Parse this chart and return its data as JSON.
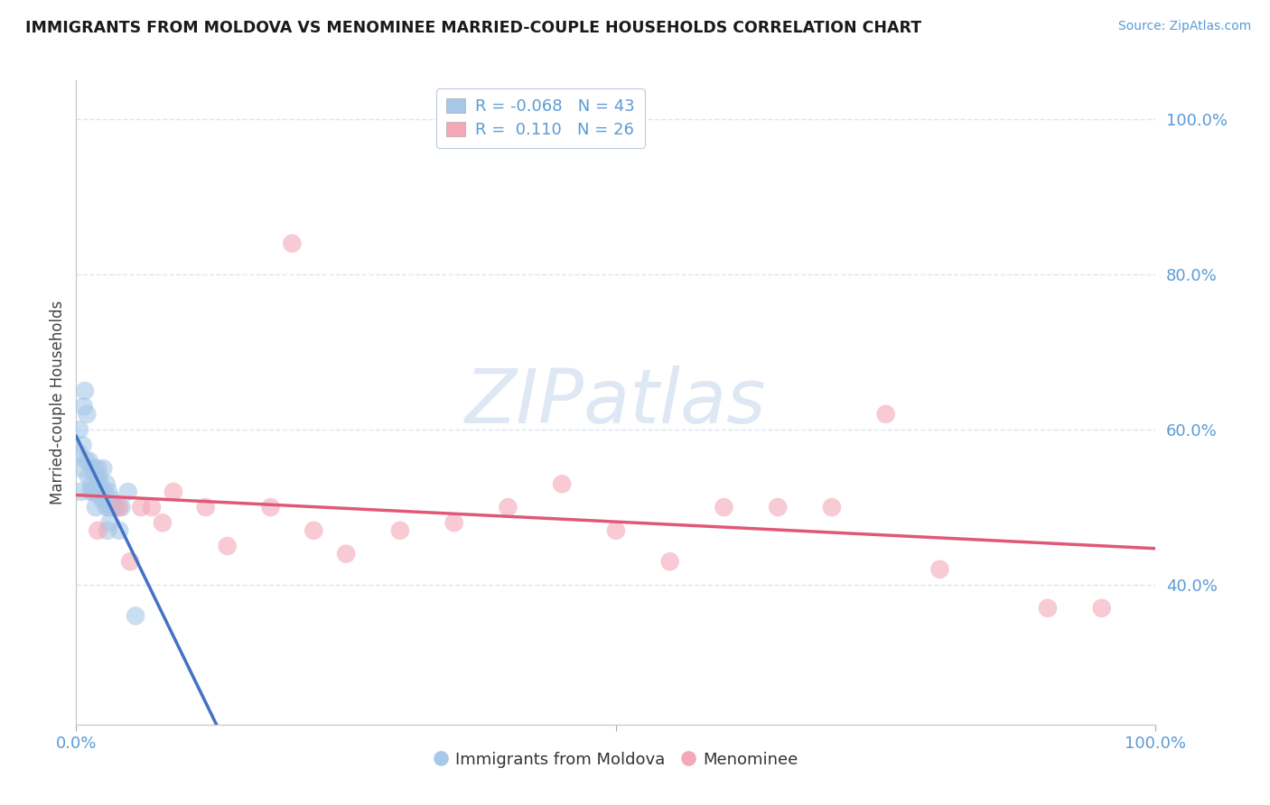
{
  "title": "IMMIGRANTS FROM MOLDOVA VS MENOMINEE MARRIED-COUPLE HOUSEHOLDS CORRELATION CHART",
  "source": "Source: ZipAtlas.com",
  "ylabel": "Married-couple Households",
  "blue_R": -0.068,
  "blue_N": 43,
  "pink_R": 0.11,
  "pink_N": 26,
  "blue_color": "#a8c8e8",
  "pink_color": "#f4a8b8",
  "blue_line_color": "#4472c4",
  "pink_line_color": "#e05878",
  "axis_tick_color": "#5b9bd5",
  "watermark_color": "#d0ddf0",
  "watermark_text": "ZIPatlas",
  "grid_color": "#d8e4f0",
  "background_color": "#ffffff",
  "blue_scatter_x": [
    0.5,
    0.8,
    1.0,
    1.2,
    1.5,
    1.5,
    1.8,
    1.8,
    2.0,
    2.0,
    2.2,
    2.5,
    2.5,
    2.8,
    2.8,
    3.0,
    3.0,
    3.2,
    3.5,
    4.0,
    0.3,
    0.6,
    0.9,
    1.1,
    1.4,
    1.7,
    2.1,
    2.6,
    3.1,
    3.6,
    4.2,
    0.4,
    0.7,
    1.3,
    2.3,
    2.9,
    3.8,
    4.8,
    0.2,
    1.6,
    2.4,
    3.3,
    5.5
  ],
  "blue_scatter_y": [
    55,
    65,
    62,
    56,
    52,
    55,
    50,
    54,
    55,
    53,
    53,
    51,
    55,
    53,
    50,
    50,
    52,
    50,
    50,
    47,
    60,
    58,
    56,
    54,
    53,
    55,
    54,
    52,
    48,
    50,
    50,
    52,
    63,
    52,
    52,
    47,
    50,
    52,
    57,
    52,
    51,
    51,
    36
  ],
  "pink_scatter_x": [
    2.0,
    4.0,
    5.0,
    6.0,
    7.0,
    8.0,
    9.0,
    12.0,
    14.0,
    18.0,
    20.0,
    22.0,
    25.0,
    30.0,
    35.0,
    40.0,
    45.0,
    50.0,
    55.0,
    60.0,
    65.0,
    70.0,
    75.0,
    80.0,
    90.0,
    95.0
  ],
  "pink_scatter_y": [
    47,
    50,
    43,
    50,
    50,
    48,
    52,
    50,
    45,
    50,
    84,
    47,
    44,
    47,
    48,
    50,
    53,
    47,
    43,
    50,
    50,
    50,
    62,
    42,
    37,
    37
  ],
  "xlim_min": 0,
  "xlim_max": 100,
  "ylim_min": 22,
  "ylim_max": 105,
  "ytick_vals": [
    40,
    60,
    80,
    100
  ],
  "ytick_labels": [
    "40.0%",
    "60.0%",
    "80.0%",
    "100.0%"
  ],
  "xtick_vals": [
    0,
    50,
    100
  ],
  "xtick_labels": [
    "0.0%",
    "",
    "100.0%"
  ]
}
